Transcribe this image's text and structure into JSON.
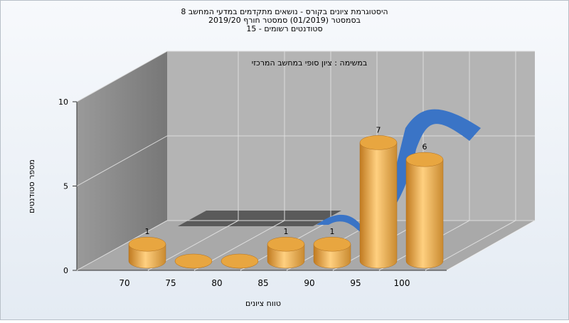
{
  "chart_data": {
    "type": "bar",
    "title": [
      "היסטוגרמת ציונים בקורס - נושאים מתקדמים במדעי המחשב 8",
      "בסמסטר (01/2019) סמסטר חורף 2019/20",
      "סטודנטים רשומים - 15"
    ],
    "subtitle": "במשימה : ציון סופי במחשב המרכזי",
    "x_label": "טווח ציונים",
    "y_label": "מספר סטודנטים",
    "categories": [
      "70",
      "75",
      "80",
      "85",
      "90",
      "95",
      "100"
    ],
    "values": [
      1,
      0,
      0,
      1,
      1,
      7,
      6
    ],
    "color": "#e8a640",
    "ylim": [
      0,
      10
    ],
    "yticks": [
      0,
      5,
      10
    ],
    "grid": true
  }
}
